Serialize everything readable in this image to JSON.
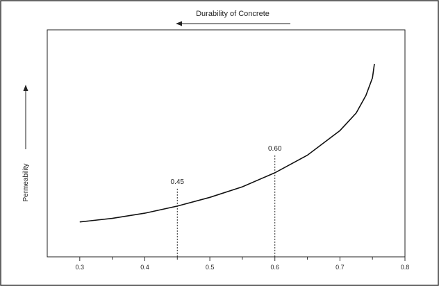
{
  "chart_data": {
    "type": "line",
    "title": "Durability of Concrete",
    "xlabel": "",
    "ylabel": "Permeability",
    "xlim": [
      0.25,
      0.8
    ],
    "x_ticks": [
      0.3,
      0.4,
      0.5,
      0.6,
      0.7,
      0.8
    ],
    "x_tick_labels": [
      "0.3",
      "0.4",
      "0.5",
      "0.6",
      "0.7",
      "0.8"
    ],
    "y_ticks_shown": false,
    "grid": false,
    "series": [
      {
        "points": [
          [
            0.3,
            0.1
          ],
          [
            0.35,
            0.12
          ],
          [
            0.4,
            0.15
          ],
          [
            0.45,
            0.19
          ],
          [
            0.5,
            0.24
          ],
          [
            0.55,
            0.3
          ],
          [
            0.6,
            0.38
          ],
          [
            0.65,
            0.48
          ],
          [
            0.7,
            0.62
          ],
          [
            0.725,
            0.72
          ],
          [
            0.74,
            0.82
          ],
          [
            0.75,
            0.92
          ],
          [
            0.753,
            1.0
          ]
        ]
      }
    ],
    "annotations": [
      {
        "x": 0.45,
        "label": "0.45"
      },
      {
        "x": 0.6,
        "label": "0.60"
      }
    ],
    "colors": {
      "line": "#111111",
      "axis": "#333333"
    }
  }
}
